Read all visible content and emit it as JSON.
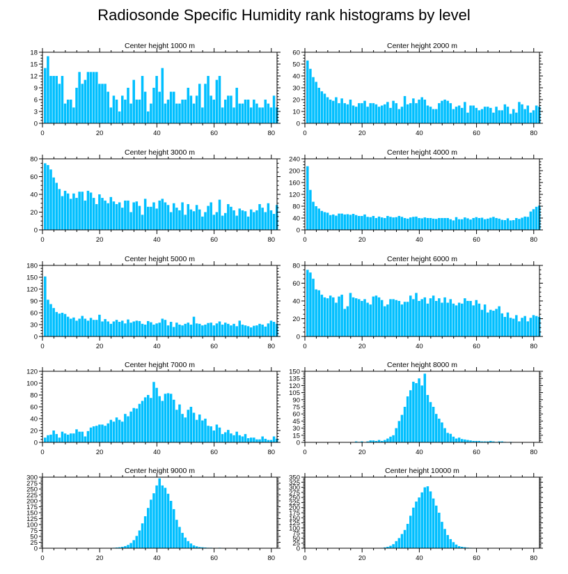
{
  "title": "Radiosonde Specific Humidity rank histograms by level",
  "bar_color": "#00bfff",
  "chart_data": [
    {
      "type": "bar",
      "title": "Center height 1000 m",
      "xlabel": "",
      "ylabel": "",
      "xlim": [
        0,
        82
      ],
      "ylim": [
        0,
        18
      ],
      "xticks": [
        0,
        20,
        40,
        60,
        80
      ],
      "yticks": [
        0,
        3,
        6,
        9,
        12,
        15,
        18
      ],
      "categories_start": 1,
      "values": [
        14,
        17,
        12,
        12,
        12,
        10,
        12,
        5,
        6,
        6,
        4,
        9,
        13,
        10,
        11,
        13,
        13,
        13,
        13,
        10,
        10,
        10,
        8,
        4,
        7,
        6,
        3,
        7,
        6,
        9,
        5,
        11,
        6,
        6,
        12,
        8,
        3,
        5,
        9,
        12,
        8,
        14,
        5,
        6,
        8,
        8,
        5,
        5,
        6,
        6,
        9,
        7,
        5,
        7,
        10,
        4,
        10,
        12,
        7,
        6,
        11,
        12,
        4,
        6,
        7,
        7,
        4,
        9,
        5,
        5,
        6,
        6,
        4,
        6,
        5,
        4,
        4,
        6,
        5,
        4,
        7,
        4
      ]
    },
    {
      "type": "bar",
      "title": "Center height 2000 m",
      "xlabel": "",
      "ylabel": "",
      "xlim": [
        0,
        82
      ],
      "ylim": [
        0,
        60
      ],
      "xticks": [
        0,
        20,
        40,
        60,
        80
      ],
      "yticks": [
        0,
        10,
        20,
        30,
        40,
        50,
        60
      ],
      "categories_start": 1,
      "values": [
        53,
        46,
        39,
        35,
        30,
        27,
        25,
        22,
        20,
        19,
        22,
        17,
        21,
        17,
        16,
        20,
        15,
        14,
        17,
        17,
        19,
        14,
        17,
        17,
        16,
        14,
        15,
        16,
        18,
        13,
        19,
        17,
        12,
        14,
        23,
        16,
        17,
        21,
        17,
        20,
        22,
        20,
        15,
        14,
        12,
        12,
        17,
        19,
        20,
        19,
        17,
        12,
        14,
        15,
        13,
        18,
        9,
        15,
        15,
        13,
        11,
        12,
        14,
        14,
        13,
        9,
        14,
        11,
        11,
        16,
        14,
        8,
        12,
        9,
        18,
        16,
        12,
        15,
        9,
        11,
        15,
        14
      ]
    },
    {
      "type": "bar",
      "title": "Center height 3000 m",
      "xlabel": "",
      "ylabel": "",
      "xlim": [
        0,
        82
      ],
      "ylim": [
        0,
        80
      ],
      "xticks": [
        0,
        20,
        40,
        60,
        80
      ],
      "yticks": [
        0,
        20,
        40,
        60,
        80
      ],
      "categories_start": 1,
      "values": [
        75,
        73,
        68,
        59,
        53,
        46,
        38,
        44,
        41,
        35,
        41,
        36,
        43,
        43,
        33,
        44,
        42,
        36,
        29,
        40,
        36,
        33,
        30,
        37,
        32,
        29,
        31,
        25,
        33,
        33,
        20,
        31,
        32,
        27,
        17,
        35,
        26,
        26,
        31,
        24,
        33,
        35,
        31,
        28,
        20,
        30,
        25,
        22,
        31,
        17,
        29,
        23,
        21,
        28,
        23,
        15,
        20,
        27,
        31,
        17,
        20,
        34,
        16,
        19,
        29,
        26,
        22,
        16,
        24,
        22,
        21,
        15,
        23,
        20,
        22,
        29,
        25,
        20,
        30,
        22,
        18,
        28
      ]
    },
    {
      "type": "bar",
      "title": "Center height 4000 m",
      "xlabel": "",
      "ylabel": "",
      "xlim": [
        0,
        82
      ],
      "ylim": [
        0,
        240
      ],
      "xticks": [
        0,
        20,
        40,
        60,
        80
      ],
      "yticks": [
        0,
        40,
        80,
        120,
        160,
        200,
        240
      ],
      "categories_start": 1,
      "values": [
        215,
        135,
        95,
        80,
        72,
        64,
        60,
        58,
        50,
        52,
        48,
        55,
        55,
        52,
        53,
        51,
        54,
        50,
        47,
        47,
        52,
        44,
        43,
        47,
        40,
        45,
        42,
        40,
        47,
        44,
        42,
        43,
        47,
        44,
        40,
        38,
        42,
        44,
        45,
        40,
        39,
        42,
        40,
        40,
        38,
        37,
        40,
        40,
        40,
        40,
        36,
        32,
        43,
        36,
        36,
        42,
        39,
        35,
        40,
        43,
        40,
        41,
        36,
        38,
        41,
        44,
        40,
        38,
        34,
        33,
        39,
        32,
        33,
        40,
        37,
        41,
        45,
        44,
        62,
        70,
        78,
        82
      ]
    },
    {
      "type": "bar",
      "title": "Center height 5000 m",
      "xlabel": "",
      "ylabel": "",
      "xlim": [
        0,
        82
      ],
      "ylim": [
        0,
        180
      ],
      "xticks": [
        0,
        20,
        40,
        60,
        80
      ],
      "yticks": [
        0,
        30,
        60,
        90,
        120,
        150,
        180
      ],
      "categories_start": 1,
      "values": [
        152,
        93,
        82,
        72,
        62,
        58,
        60,
        57,
        50,
        45,
        48,
        40,
        45,
        52,
        45,
        40,
        47,
        42,
        42,
        55,
        38,
        44,
        38,
        32,
        38,
        42,
        37,
        40,
        33,
        43,
        35,
        38,
        40,
        39,
        32,
        30,
        39,
        36,
        30,
        33,
        35,
        45,
        42,
        28,
        37,
        24,
        35,
        30,
        28,
        32,
        35,
        30,
        50,
        33,
        32,
        28,
        30,
        34,
        35,
        28,
        33,
        38,
        30,
        35,
        32,
        28,
        32,
        26,
        40,
        30,
        28,
        26,
        23,
        27,
        28,
        32,
        30,
        25,
        33,
        40,
        37,
        32
      ]
    },
    {
      "type": "bar",
      "title": "Center height 6000 m",
      "xlabel": "",
      "ylabel": "",
      "xlim": [
        0,
        82
      ],
      "ylim": [
        0,
        80
      ],
      "xticks": [
        0,
        20,
        40,
        60,
        80
      ],
      "yticks": [
        0,
        20,
        40,
        60,
        80
      ],
      "categories_start": 1,
      "values": [
        75,
        72,
        65,
        53,
        52,
        47,
        44,
        43,
        46,
        44,
        38,
        45,
        47,
        31,
        34,
        49,
        44,
        43,
        42,
        40,
        42,
        38,
        36,
        45,
        46,
        44,
        41,
        34,
        36,
        42,
        42,
        41,
        40,
        36,
        39,
        39,
        46,
        42,
        49,
        40,
        42,
        44,
        37,
        43,
        46,
        40,
        43,
        38,
        44,
        38,
        42,
        37,
        35,
        38,
        37,
        43,
        40,
        40,
        35,
        41,
        37,
        30,
        36,
        27,
        30,
        29,
        31,
        34,
        26,
        22,
        27,
        21,
        20,
        24,
        17,
        21,
        23,
        17,
        21,
        24,
        23,
        22
      ]
    },
    {
      "type": "bar",
      "title": "Center height 7000 m",
      "xlabel": "",
      "ylabel": "",
      "xlim": [
        0,
        82
      ],
      "ylim": [
        0,
        120
      ],
      "xticks": [
        0,
        20,
        40,
        60,
        80
      ],
      "yticks": [
        0,
        20,
        40,
        60,
        80,
        100,
        120
      ],
      "categories_start": 1,
      "values": [
        8,
        12,
        13,
        20,
        14,
        8,
        18,
        15,
        13,
        15,
        15,
        22,
        18,
        18,
        10,
        19,
        25,
        27,
        28,
        30,
        30,
        28,
        32,
        38,
        35,
        42,
        38,
        35,
        48,
        44,
        52,
        58,
        57,
        65,
        70,
        76,
        80,
        75,
        102,
        92,
        78,
        70,
        82,
        83,
        82,
        72,
        55,
        64,
        48,
        42,
        55,
        60,
        50,
        38,
        47,
        37,
        40,
        28,
        27,
        20,
        30,
        25,
        14,
        17,
        21,
        15,
        12,
        18,
        12,
        10,
        14,
        7,
        8,
        8,
        5,
        5,
        10,
        6,
        4,
        4,
        10,
        6
      ]
    },
    {
      "type": "bar",
      "title": "Center height 8000 m",
      "xlabel": "",
      "ylabel": "",
      "xlim": [
        0,
        82
      ],
      "ylim": [
        0,
        150
      ],
      "xticks": [
        0,
        20,
        40,
        60,
        80
      ],
      "yticks": [
        0,
        15,
        30,
        45,
        60,
        75,
        90,
        105,
        120,
        135,
        150
      ],
      "categories_start": 1,
      "values": [
        0,
        0,
        0,
        0,
        0,
        0,
        0,
        0,
        0,
        0,
        0,
        0,
        0,
        0,
        0,
        0,
        0,
        2,
        1,
        2,
        0,
        2,
        4,
        4,
        3,
        5,
        3,
        5,
        8,
        12,
        15,
        30,
        45,
        58,
        75,
        97,
        110,
        128,
        125,
        135,
        120,
        145,
        100,
        85,
        75,
        60,
        50,
        42,
        30,
        20,
        18,
        12,
        8,
        10,
        7,
        6,
        5,
        4,
        3,
        3,
        3,
        2,
        2,
        2,
        3,
        2,
        1,
        2,
        2,
        1,
        0,
        1,
        0,
        0,
        0,
        0,
        0,
        0,
        0,
        0,
        0,
        0
      ]
    },
    {
      "type": "bar",
      "title": "Center height 9000 m",
      "xlabel": "",
      "ylabel": "",
      "xlim": [
        0,
        82
      ],
      "ylim": [
        0,
        300
      ],
      "xticks": [
        0,
        20,
        40,
        60,
        80
      ],
      "yticks": [
        0,
        25,
        50,
        75,
        100,
        125,
        150,
        175,
        200,
        225,
        250,
        275,
        300
      ],
      "categories_start": 1,
      "values": [
        0,
        0,
        0,
        0,
        0,
        0,
        0,
        0,
        0,
        0,
        0,
        0,
        0,
        0,
        0,
        0,
        0,
        0,
        0,
        0,
        0,
        0,
        1,
        1,
        2,
        3,
        4,
        6,
        9,
        14,
        22,
        34,
        52,
        75,
        105,
        135,
        170,
        205,
        232,
        265,
        295,
        265,
        255,
        230,
        200,
        165,
        120,
        90,
        65,
        45,
        30,
        20,
        12,
        8,
        5,
        4,
        3,
        2,
        2,
        1,
        1,
        2,
        1,
        1,
        0,
        0,
        0,
        0,
        0,
        0,
        0,
        0,
        0,
        0,
        0,
        0,
        0,
        0,
        0,
        0,
        0,
        0
      ]
    },
    {
      "type": "bar",
      "title": "Center height 10000 m",
      "xlabel": "",
      "ylabel": "",
      "xlim": [
        0,
        82
      ],
      "ylim": [
        0,
        350
      ],
      "xticks": [
        0,
        20,
        40,
        60,
        80
      ],
      "yticks": [
        0,
        25,
        50,
        75,
        100,
        125,
        150,
        175,
        200,
        225,
        250,
        275,
        300,
        325,
        350
      ],
      "categories_start": 1,
      "values": [
        0,
        0,
        0,
        0,
        0,
        0,
        0,
        0,
        0,
        0,
        0,
        0,
        0,
        0,
        0,
        0,
        0,
        0,
        0,
        0,
        0,
        0,
        0,
        0,
        1,
        1,
        2,
        4,
        7,
        12,
        20,
        35,
        50,
        70,
        90,
        120,
        160,
        200,
        230,
        250,
        275,
        300,
        305,
        280,
        245,
        210,
        175,
        130,
        95,
        65,
        45,
        30,
        18,
        10,
        7,
        5,
        3,
        2,
        1,
        1,
        0,
        0,
        0,
        0,
        0,
        0,
        0,
        0,
        0,
        0,
        0,
        0,
        0,
        0,
        0,
        0,
        0,
        0,
        0,
        0,
        0,
        0
      ]
    }
  ]
}
